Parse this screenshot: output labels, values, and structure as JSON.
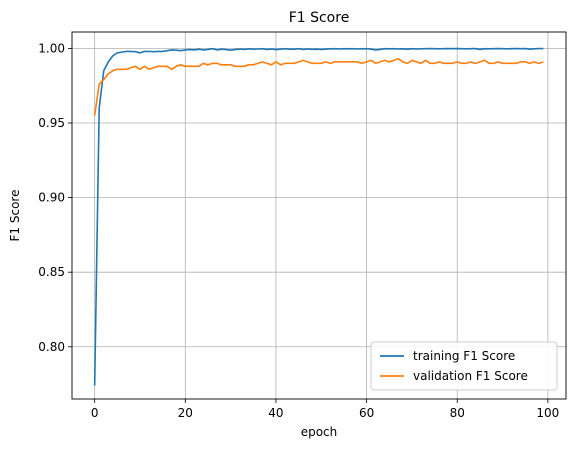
{
  "chart_data": {
    "type": "line",
    "title": "F1 Score",
    "xlabel": "epoch",
    "ylabel": "F1 Score",
    "xlim": [
      -5,
      104
    ],
    "ylim": [
      0.765,
      1.011
    ],
    "xticks": [
      0,
      20,
      40,
      60,
      80,
      100
    ],
    "xtick_labels": [
      "0",
      "20",
      "40",
      "60",
      "80",
      "100"
    ],
    "yticks": [
      0.8,
      0.85,
      0.9,
      0.95,
      1.0
    ],
    "ytick_labels": [
      "0.80",
      "0.85",
      "0.90",
      "0.95",
      "1.00"
    ],
    "grid": true,
    "legend_position": "lower-right",
    "series": [
      {
        "name": "training F1 Score",
        "color": "#1f77b4",
        "x": [
          0,
          1,
          2,
          3,
          4,
          5,
          6,
          7,
          8,
          9,
          10,
          11,
          12,
          13,
          14,
          15,
          16,
          17,
          18,
          19,
          20,
          21,
          22,
          23,
          24,
          25,
          26,
          27,
          28,
          29,
          30,
          31,
          32,
          33,
          34,
          35,
          36,
          37,
          38,
          39,
          40,
          41,
          42,
          43,
          44,
          45,
          46,
          47,
          48,
          49,
          50,
          51,
          52,
          53,
          54,
          55,
          56,
          57,
          58,
          59,
          60,
          61,
          62,
          63,
          64,
          65,
          66,
          67,
          68,
          69,
          70,
          71,
          72,
          73,
          74,
          75,
          76,
          77,
          78,
          79,
          80,
          81,
          82,
          83,
          84,
          85,
          86,
          87,
          88,
          89,
          90,
          91,
          92,
          93,
          94,
          95,
          96,
          97,
          98,
          99
        ],
        "y": [
          0.774,
          0.96,
          0.985,
          0.991,
          0.995,
          0.997,
          0.9975,
          0.998,
          0.998,
          0.9978,
          0.997,
          0.998,
          0.998,
          0.9978,
          0.998,
          0.998,
          0.9985,
          0.999,
          0.9988,
          0.9985,
          0.999,
          0.9992,
          0.999,
          0.9995,
          0.999,
          0.9993,
          0.9998,
          0.999,
          0.9995,
          0.9992,
          0.9988,
          0.9992,
          0.9996,
          0.9993,
          0.9997,
          0.9995,
          0.9996,
          0.9998,
          0.9993,
          0.9996,
          0.9992,
          0.9995,
          0.9998,
          0.9995,
          0.9995,
          0.9998,
          0.9993,
          0.9996,
          0.9994,
          0.9995,
          0.9993,
          0.9995,
          0.9997,
          0.9998,
          0.9996,
          0.9998,
          0.9997,
          0.9998,
          0.9996,
          0.9997,
          0.9998,
          0.9995,
          0.999,
          0.9993,
          0.9998,
          0.9997,
          0.9998,
          0.9996,
          0.9997,
          0.9995,
          0.9998,
          0.9996,
          0.9997,
          0.9998,
          0.9999,
          0.9998,
          0.9997,
          0.9998,
          0.9999,
          0.9998,
          0.9999,
          0.9998,
          0.9997,
          0.9998,
          0.9999,
          0.9993,
          0.9998,
          0.9997,
          0.9998,
          0.9999,
          0.9998,
          0.9997,
          0.9998,
          0.9999,
          0.9998,
          0.9999,
          0.9995,
          0.9997,
          0.9999,
          0.9999
        ]
      },
      {
        "name": "validation F1 Score",
        "color": "#ff7f0e",
        "x": [
          0,
          1,
          2,
          3,
          4,
          5,
          6,
          7,
          8,
          9,
          10,
          11,
          12,
          13,
          14,
          15,
          16,
          17,
          18,
          19,
          20,
          21,
          22,
          23,
          24,
          25,
          26,
          27,
          28,
          29,
          30,
          31,
          32,
          33,
          34,
          35,
          36,
          37,
          38,
          39,
          40,
          41,
          42,
          43,
          44,
          45,
          46,
          47,
          48,
          49,
          50,
          51,
          52,
          53,
          54,
          55,
          56,
          57,
          58,
          59,
          60,
          61,
          62,
          63,
          64,
          65,
          66,
          67,
          68,
          69,
          70,
          71,
          72,
          73,
          74,
          75,
          76,
          77,
          78,
          79,
          80,
          81,
          82,
          83,
          84,
          85,
          86,
          87,
          88,
          89,
          90,
          91,
          92,
          93,
          94,
          95,
          96,
          97,
          98,
          99
        ],
        "y": [
          0.955,
          0.976,
          0.979,
          0.983,
          0.985,
          0.986,
          0.986,
          0.986,
          0.987,
          0.988,
          0.986,
          0.988,
          0.986,
          0.987,
          0.988,
          0.988,
          0.988,
          0.986,
          0.988,
          0.989,
          0.988,
          0.988,
          0.988,
          0.988,
          0.99,
          0.989,
          0.99,
          0.99,
          0.989,
          0.989,
          0.989,
          0.988,
          0.988,
          0.988,
          0.989,
          0.989,
          0.99,
          0.991,
          0.99,
          0.989,
          0.991,
          0.989,
          0.99,
          0.99,
          0.99,
          0.991,
          0.992,
          0.991,
          0.99,
          0.99,
          0.99,
          0.991,
          0.99,
          0.991,
          0.991,
          0.991,
          0.991,
          0.991,
          0.991,
          0.99,
          0.991,
          0.992,
          0.99,
          0.991,
          0.992,
          0.991,
          0.992,
          0.993,
          0.991,
          0.99,
          0.992,
          0.991,
          0.99,
          0.992,
          0.99,
          0.99,
          0.991,
          0.99,
          0.99,
          0.99,
          0.991,
          0.99,
          0.99,
          0.991,
          0.99,
          0.991,
          0.992,
          0.99,
          0.99,
          0.991,
          0.99,
          0.99,
          0.99,
          0.99,
          0.991,
          0.991,
          0.99,
          0.991,
          0.99,
          0.991
        ]
      }
    ]
  }
}
